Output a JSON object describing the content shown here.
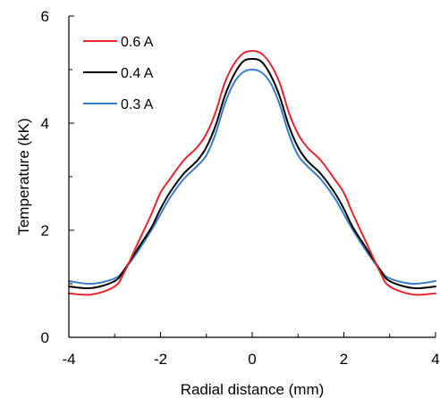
{
  "chart_data": {
    "type": "line",
    "xlabel": "Radial distance (mm)",
    "ylabel": "Temperature (kK)",
    "xlim": [
      -4,
      4
    ],
    "ylim": [
      0,
      6
    ],
    "x_ticks": [
      -4,
      -2,
      0,
      2,
      4
    ],
    "y_ticks": [
      0,
      2,
      4,
      6
    ],
    "x_tick_labels": [
      "-4",
      "-2",
      "0",
      "2",
      "4"
    ],
    "y_tick_labels": [
      "0",
      "2",
      "4",
      "6"
    ],
    "grid": false,
    "legend_position": "top-left",
    "series": [
      {
        "name": "0.6 A",
        "color": "#e8262b",
        "x": [
          -4.0,
          -3.5,
          -3.0,
          -2.8,
          -2.5,
          -2.2,
          -2.0,
          -1.8,
          -1.5,
          -1.2,
          -1.0,
          -0.8,
          -0.6,
          -0.4,
          -0.2,
          0.0,
          0.2,
          0.4,
          0.6,
          0.8,
          1.0,
          1.2,
          1.5,
          1.8,
          2.0,
          2.2,
          2.5,
          2.8,
          3.0,
          3.5,
          4.0
        ],
        "y": [
          0.82,
          0.8,
          0.95,
          1.2,
          1.75,
          2.3,
          2.7,
          2.95,
          3.3,
          3.55,
          3.8,
          4.2,
          4.75,
          5.1,
          5.3,
          5.35,
          5.3,
          5.1,
          4.75,
          4.2,
          3.8,
          3.55,
          3.3,
          2.95,
          2.7,
          2.3,
          1.75,
          1.2,
          0.95,
          0.8,
          0.82
        ]
      },
      {
        "name": "0.4 A",
        "color": "#000000",
        "x": [
          -4.0,
          -3.5,
          -3.0,
          -2.8,
          -2.5,
          -2.2,
          -2.0,
          -1.8,
          -1.5,
          -1.2,
          -1.0,
          -0.8,
          -0.6,
          -0.4,
          -0.2,
          0.0,
          0.2,
          0.4,
          0.6,
          0.8,
          1.0,
          1.2,
          1.5,
          1.8,
          2.0,
          2.2,
          2.5,
          2.8,
          3.0,
          3.5,
          4.0
        ],
        "y": [
          0.95,
          0.92,
          1.05,
          1.25,
          1.65,
          2.05,
          2.4,
          2.7,
          3.05,
          3.3,
          3.55,
          3.95,
          4.5,
          4.9,
          5.15,
          5.2,
          5.15,
          4.9,
          4.5,
          3.95,
          3.55,
          3.3,
          3.05,
          2.7,
          2.4,
          2.05,
          1.65,
          1.25,
          1.05,
          0.92,
          0.95
        ]
      },
      {
        "name": "0.3 A",
        "color": "#3a7cc8",
        "x": [
          -4.0,
          -3.5,
          -3.0,
          -2.8,
          -2.5,
          -2.2,
          -2.0,
          -1.8,
          -1.5,
          -1.2,
          -1.0,
          -0.8,
          -0.6,
          -0.4,
          -0.2,
          0.0,
          0.2,
          0.4,
          0.6,
          0.8,
          1.0,
          1.2,
          1.5,
          1.8,
          2.0,
          2.2,
          2.5,
          2.8,
          3.0,
          3.5,
          4.0
        ],
        "y": [
          1.05,
          1.0,
          1.1,
          1.25,
          1.6,
          2.0,
          2.3,
          2.6,
          2.95,
          3.2,
          3.4,
          3.8,
          4.35,
          4.75,
          4.95,
          5.0,
          4.95,
          4.75,
          4.35,
          3.8,
          3.4,
          3.2,
          2.95,
          2.6,
          2.3,
          2.0,
          1.6,
          1.25,
          1.1,
          1.0,
          1.05
        ]
      }
    ]
  }
}
